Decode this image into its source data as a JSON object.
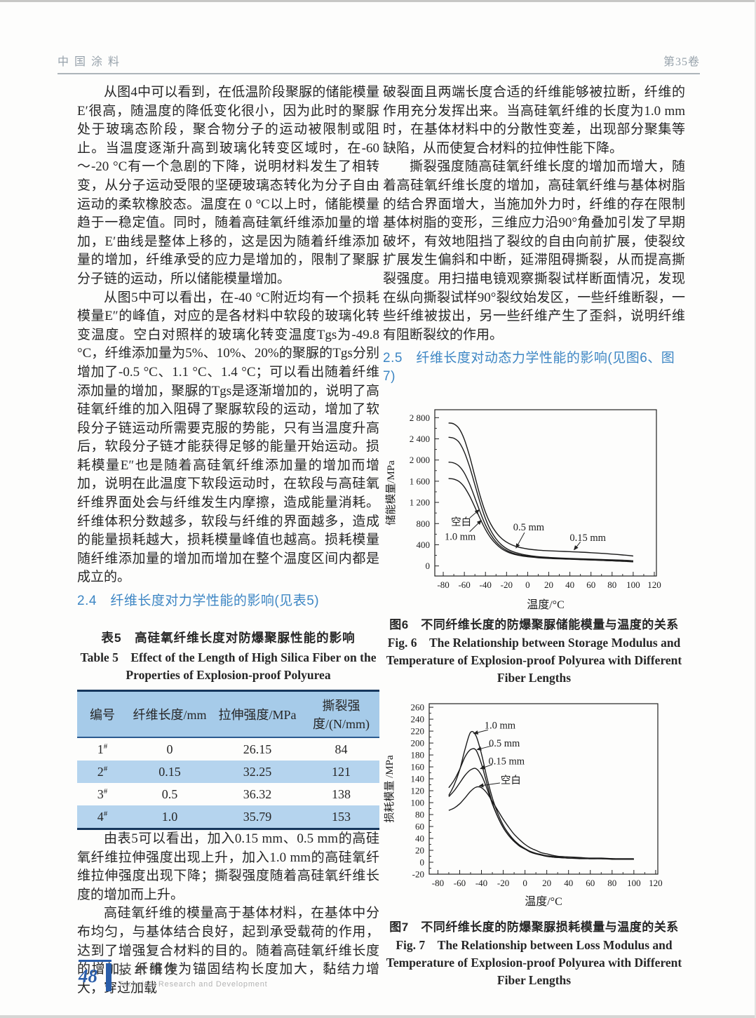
{
  "header": {
    "journal": "中国涂料",
    "volume": "第35卷"
  },
  "footer": {
    "page_number": "48",
    "section_zh": "技术研发",
    "section_en": "Technical Research and Development"
  },
  "left_column": {
    "paragraphs": [
      "从图4中可以看到，在低温阶段聚脲的储能模量E′很高，随温度的降低变化很小，因为此时的聚脲处于玻璃态阶段，聚合物分子的运动被限制或阻止。当温度逐渐升高到玻璃化转变区域时，在-60～-20 °C有一个急剧的下降，说明材料发生了相转变，从分子运动受限的坚硬玻璃态转化为分子自由运动的柔软橡胶态。温度在 0 °C以上时，储能模量趋于一稳定值。同时，随着高硅氧纤维添加量的增加，E′曲线是整体上移的，这是因为随着纤维添加量的增加，纤维承受的应力是增加的，限制了聚脲分子链的运动，所以储能模量增加。",
      "从图5中可以看出，在-40 °C附近均有一个损耗模量E″的峰值，对应的是各材料中软段的玻璃化转变温度。空白对照样的玻璃化转变温度Tgs为-49.8 °C，纤维添加量为5%、10%、20%的聚脲的Tgs分别增加了-0.5 °C、1.1 °C、1.4 °C；可以看出随着纤维添加量的增加，聚脲的Tgs是逐渐增加的，说明了高硅氧纤维的加入阻碍了聚脲软段的运动，增加了软段分子链运动所需要克服的势能，只有当温度升高后，软段分子链才能获得足够的能量开始运动。损耗模量E″也是随着高硅氧纤维添加量的增加而增加，说明在此温度下软段运动时，在软段与高硅氧纤维界面处会与纤维发生内摩擦，造成能量消耗。纤维体积分数越多，软段与纤维的界面越多，造成的能量损耗越大，损耗模量峰值也越高。损耗模量随纤维添加量的增加而增加在整个温度区间内都是成立的。"
    ],
    "section_heading": "2.4　纤维长度对力学性能的影响(见表5)",
    "table5": {
      "caption_zh": "表5　高硅氧纤维长度对防爆聚脲性能的影响",
      "caption_en": "Table 5　Effect of the Length of High Silica Fiber on the Properties of Explosion-proof Polyurea",
      "headers": [
        "编号",
        "纤维长度/mm",
        "拉伸强度/MPa",
        "撕裂强度/(N/mm)"
      ],
      "id_suffix": "#",
      "rows": [
        [
          "1",
          "0",
          "26.15",
          "84"
        ],
        [
          "2",
          "0.15",
          "32.25",
          "121"
        ],
        [
          "3",
          "0.5",
          "36.32",
          "138"
        ],
        [
          "4",
          "1.0",
          "35.79",
          "153"
        ]
      ]
    },
    "paragraphs_after": [
      "由表5可以看出，加入0.15 mm、0.5 mm的高硅氧纤维拉伸强度出现上升，加入1.0 mm的高硅氧纤维拉伸强度出现下降；撕裂强度随着高硅氧纤维长度的增加而上升。",
      "高硅氧纤维的模量高于基体材料，在基体中分布均匀，与基体结合良好，起到承受载荷的作用，达到了增强复合材料的目的。随着高硅氧纤维长度的增加，纤维作为锚固结构长度加大，黏结力增大，穿过加载"
    ]
  },
  "right_column": {
    "paragraphs": [
      "破裂面且两端长度合适的纤维能够被拉断，纤维的作用充分发挥出来。当高硅氧纤维的长度为1.0 mm时，在基体材料中的分散性变差，出现部分聚集等缺陷，从而使复合材料的拉伸性能下降。",
      "撕裂强度随高硅氧纤维长度的增加而增大，随着高硅氧纤维长度的增加，高硅氧纤维与基体树脂的结合界面增大，当施加外力时，纤维的存在限制基体树脂的变形，三维应力沿90°角叠加引发了早期破坏，有效地阻挡了裂纹的自由向前扩展，使裂纹扩展发生偏斜和中断，延滞阻碍撕裂，从而提高撕裂强度。用扫描电镜观察撕裂试样断面情况，发现在纵向撕裂试样90°裂纹始发区，一些纤维断裂，一些纤维被拔出，另一些纤维产生了歪斜，说明纤维有阻断裂纹的作用。"
    ],
    "section_heading": "2.5　纤维长度对动态力学性能的影响(见图6、图7)",
    "fig6": {
      "caption_zh": "图6　不同纤维长度的防爆聚脲储能模量与温度的关系",
      "caption_en": "Fig. 6　The Relationship between Storage Modulus and Temperature of Explosion-proof Polyurea with Different Fiber Lengths"
    },
    "fig7": {
      "caption_zh": "图7　不同纤维长度的防爆聚脲损耗模量与温度的关系",
      "caption_en": "Fig. 7　The Relationship between Loss Modulus and Temperature of Explosion-proof Polyurea with Different Fiber Lengths"
    }
  },
  "chart_data": [
    {
      "id": "fig6",
      "type": "line",
      "xlabel": "温度/°C",
      "ylabel": "储能模量/MPa",
      "xlim": [
        -88,
        122
      ],
      "ylim": [
        -190,
        2950
      ],
      "xticks": [
        -80,
        -60,
        -40,
        -20,
        0,
        20,
        40,
        60,
        80,
        100,
        120
      ],
      "xminor": 10,
      "yticks": [
        0,
        400,
        800,
        1200,
        1600,
        2000,
        2400,
        2800
      ],
      "ytick_labels": [
        "0",
        "400",
        "800",
        "1 200",
        "1 600",
        "2 000",
        "2 400",
        "2 800"
      ],
      "yminor": 200,
      "grid": false,
      "legend": "annotated-arrows",
      "series": [
        {
          "name": "空白",
          "x": [
            -75,
            -70,
            -65,
            -60,
            -55,
            -50,
            -45,
            -40,
            -35,
            -30,
            -25,
            -20,
            -15,
            -10,
            -5,
            0,
            10,
            20,
            30,
            40,
            50,
            60,
            70,
            80,
            90,
            100
          ],
          "y": [
            1650,
            1640,
            1595,
            1490,
            1320,
            1110,
            890,
            690,
            530,
            415,
            330,
            272,
            232,
            206,
            188,
            175,
            155,
            142,
            133,
            126,
            119,
            112,
            105,
            97,
            88,
            78
          ]
        },
        {
          "name": "1.0 mm",
          "x": [
            -75,
            -70,
            -65,
            -60,
            -55,
            -50,
            -45,
            -40,
            -35,
            -30,
            -25,
            -20,
            -15,
            -10,
            -5,
            0,
            10,
            20,
            30,
            40,
            50,
            60,
            70,
            80,
            90,
            100
          ],
          "y": [
            1960,
            1945,
            1885,
            1755,
            1545,
            1285,
            1015,
            775,
            590,
            455,
            360,
            295,
            250,
            220,
            200,
            185,
            162,
            148,
            138,
            130,
            122,
            114,
            106,
            98,
            90,
            82
          ]
        },
        {
          "name": "0.5 mm",
          "x": [
            -75,
            -70,
            -65,
            -60,
            -55,
            -50,
            -45,
            -40,
            -35,
            -30,
            -25,
            -20,
            -15,
            -10,
            -5,
            0,
            10,
            20,
            30,
            40,
            50,
            60,
            70,
            80,
            90,
            100
          ],
          "y": [
            2430,
            2412,
            2335,
            2150,
            1870,
            1530,
            1190,
            895,
            670,
            512,
            402,
            328,
            278,
            244,
            220,
            202,
            176,
            161,
            151,
            143,
            136,
            129,
            122,
            115,
            108,
            98
          ]
        },
        {
          "name": "0.15 mm",
          "x": [
            -75,
            -70,
            -65,
            -60,
            -55,
            -50,
            -45,
            -40,
            -35,
            -30,
            -25,
            -20,
            -15,
            -10,
            -5,
            0,
            10,
            20,
            30,
            40,
            50,
            60,
            70,
            80,
            90,
            100
          ],
          "y": [
            2700,
            2682,
            2595,
            2390,
            2070,
            1690,
            1320,
            1015,
            790,
            635,
            525,
            450,
            398,
            362,
            338,
            320,
            298,
            286,
            278,
            270,
            261,
            250,
            238,
            224,
            208,
            188
          ]
        }
      ],
      "annotations": [
        {
          "text": "空白",
          "tx": -63,
          "ty": 830,
          "x1": -55,
          "y1": 905,
          "x2": -46,
          "y2": 1060
        },
        {
          "text": "1.0 mm",
          "tx": -64,
          "ty": 560,
          "x1": -55,
          "y1": 645,
          "x2": -44,
          "y2": 860
        },
        {
          "text": "0.5 mm",
          "tx": 1,
          "ty": 740,
          "x1": -3,
          "y1": 630,
          "x2": -11,
          "y2": 340
        },
        {
          "text": "0.15 mm",
          "tx": 57,
          "ty": 540,
          "x1": 50,
          "y1": 455,
          "x2": 44,
          "y2": 305
        }
      ]
    },
    {
      "id": "fig7",
      "type": "line",
      "xlabel": "温度/°C",
      "ylabel": "损耗模量 /MPa",
      "xlim": [
        -88,
        122
      ],
      "ylim": [
        -20,
        266
      ],
      "xticks": [
        -80,
        -60,
        -40,
        -20,
        0,
        20,
        40,
        60,
        80,
        100,
        120
      ],
      "xminor": 10,
      "yticks": [
        -20,
        0,
        20,
        40,
        60,
        80,
        100,
        120,
        140,
        160,
        180,
        200,
        220,
        240,
        260
      ],
      "yminor": 10,
      "grid": false,
      "legend": "annotated-arrows",
      "series": [
        {
          "name": "空白",
          "x": [
            -70,
            -65,
            -60,
            -55,
            -50,
            -45,
            -40,
            -35,
            -30,
            -25,
            -20,
            -15,
            -10,
            -5,
            0,
            5,
            10,
            15,
            20,
            30,
            40,
            50,
            60,
            70,
            80,
            90,
            100
          ],
          "y": [
            87,
            91,
            98,
            108,
            119,
            126,
            125,
            116,
            102,
            87,
            72,
            59,
            47,
            38,
            30,
            24,
            20,
            16,
            14,
            10,
            9,
            8,
            7,
            7,
            6,
            6,
            6
          ]
        },
        {
          "name": "0.15 mm",
          "x": [
            -70,
            -65,
            -60,
            -55,
            -50,
            -45,
            -40,
            -35,
            -30,
            -25,
            -20,
            -15,
            -10,
            -5,
            0,
            5,
            10,
            15,
            20,
            30,
            40,
            50,
            60,
            70,
            80,
            90,
            100
          ],
          "y": [
            110,
            120,
            133,
            146,
            155,
            157,
            146,
            124,
            98,
            76,
            58,
            45,
            35,
            28,
            22,
            18,
            15,
            12,
            10,
            8,
            7,
            7,
            6,
            6,
            6,
            5,
            5
          ]
        },
        {
          "name": "0.5 mm",
          "x": [
            -70,
            -65,
            -60,
            -55,
            -50,
            -45,
            -40,
            -35,
            -30,
            -25,
            -20,
            -15,
            -10,
            -5,
            0,
            5,
            10,
            15,
            20,
            30,
            40,
            50,
            60,
            70,
            80,
            90,
            100
          ],
          "y": [
            125,
            138,
            156,
            177,
            189,
            188,
            165,
            132,
            100,
            76,
            58,
            45,
            35,
            27,
            22,
            17,
            14,
            12,
            10,
            8,
            7,
            6,
            6,
            6,
            5,
            5,
            5
          ]
        },
        {
          "name": "1.0 mm",
          "x": [
            -70,
            -65,
            -60,
            -55,
            -50,
            -45,
            -40,
            -35,
            -30,
            -25,
            -20,
            -15,
            -10,
            -5,
            0,
            5,
            10,
            15,
            20,
            30,
            40,
            50,
            60,
            70,
            80,
            90,
            100
          ],
          "y": [
            112,
            130,
            155,
            190,
            218,
            212,
            182,
            142,
            108,
            82,
            62,
            48,
            37,
            29,
            23,
            18,
            15,
            13,
            11,
            9,
            7,
            7,
            6,
            6,
            6,
            5,
            5
          ]
        }
      ],
      "annotations": [
        {
          "text": "1.0 mm",
          "tx": -23,
          "ty": 230,
          "x1": -34,
          "y1": 222,
          "x2": -47,
          "y2": 216
        },
        {
          "text": "0.5 mm",
          "tx": -19,
          "ty": 200,
          "x1": -31,
          "y1": 195,
          "x2": -44,
          "y2": 189
        },
        {
          "text": "0.15 mm",
          "tx": -17,
          "ty": 170,
          "x1": -30,
          "y1": 164,
          "x2": -41,
          "y2": 157
        },
        {
          "text": "空白",
          "tx": -13,
          "ty": 138,
          "x1": -23,
          "y1": 133,
          "x2": -42,
          "y2": 128
        }
      ]
    }
  ]
}
